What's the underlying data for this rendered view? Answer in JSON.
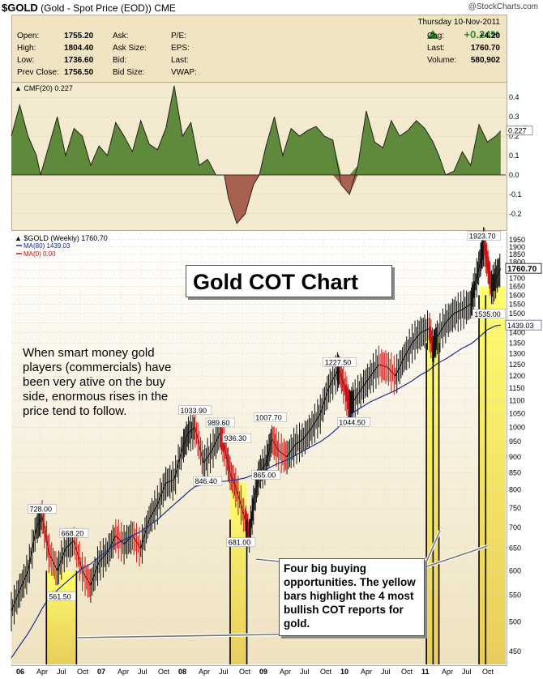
{
  "header": {
    "symbol": "$GOLD",
    "name": "(Gold - Spot Price (EOD))",
    "exchange": "CME",
    "brand": "@StockCharts.com",
    "date": "Thursday  10-Nov-2011",
    "change_pct": "+0.24%",
    "rows": [
      {
        "k1": "Open:",
        "v1": "1755.20",
        "k2": "Ask:",
        "k3": "P/E:",
        "k4": "Chg:",
        "v4": "+4.20"
      },
      {
        "k1": "High:",
        "v1": "1804.40",
        "k2": "Ask Size:",
        "k3": "EPS:",
        "k4": "Last:",
        "v4": "1760.70"
      },
      {
        "k1": "Low:",
        "v1": "1736.60",
        "k2": "Bid:",
        "k3": "Last:",
        "k4": "Volume:",
        "v4": "580,902"
      },
      {
        "k1": "Prev Close:",
        "v1": "1756.50",
        "k2": "Bid Size:",
        "k3": "VWAP:",
        "k4": "",
        "v4": ""
      }
    ],
    "colors": {
      "up": "#2e8b2e",
      "panel": "#f1e4c2"
    }
  },
  "chart_data": [
    {
      "type": "area",
      "title": "CMF(20) 0.227",
      "ylim": [
        -0.28,
        0.48
      ],
      "yticks": [
        "0.4",
        "0.3",
        "0.2",
        "0.1",
        "0.0",
        "-0.1",
        "-0.2"
      ],
      "last_label": "0.227",
      "x": [
        2006.0,
        2006.1,
        2006.2,
        2006.3,
        2006.35,
        2006.45,
        2006.55,
        2006.65,
        2006.75,
        2006.85,
        2006.95,
        2007.05,
        2007.15,
        2007.25,
        2007.35,
        2007.45,
        2007.55,
        2007.65,
        2007.75,
        2007.85,
        2007.95,
        2008.05,
        2008.15,
        2008.25,
        2008.35,
        2008.45,
        2008.55,
        2008.6,
        2008.7,
        2008.8,
        2008.9,
        2008.97,
        2009.05,
        2009.15,
        2009.25,
        2009.35,
        2009.45,
        2009.55,
        2009.65,
        2009.75,
        2009.85,
        2009.95,
        2010.05,
        2010.15,
        2010.25,
        2010.35,
        2010.45,
        2010.55,
        2010.65,
        2010.75,
        2010.85,
        2010.95,
        2011.05,
        2011.12,
        2011.2,
        2011.3,
        2011.4,
        2011.5,
        2011.6,
        2011.7,
        2011.8,
        2011.86
      ],
      "values": [
        0.2,
        0.36,
        0.2,
        0.1,
        0.0,
        0.15,
        0.3,
        0.1,
        0.24,
        0.2,
        0.05,
        0.15,
        0.1,
        0.27,
        0.2,
        0.12,
        0.28,
        0.16,
        0.13,
        0.24,
        0.46,
        0.2,
        0.27,
        0.05,
        0.08,
        0.0,
        0.0,
        -0.12,
        -0.25,
        -0.2,
        -0.05,
        0.0,
        0.15,
        0.3,
        0.1,
        0.24,
        0.2,
        0.23,
        0.25,
        0.2,
        0.18,
        -0.05,
        -0.1,
        0.05,
        0.33,
        0.17,
        0.14,
        0.28,
        0.2,
        0.23,
        0.28,
        0.24,
        0.17,
        0.1,
        0.0,
        0.02,
        0.12,
        0.05,
        0.26,
        0.17,
        0.2,
        0.227
      ]
    },
    {
      "type": "line",
      "title": "$GOLD (Weekly) 1760.70",
      "legend": [
        "MA(80) 1439.03",
        "MA(0) 0.00"
      ],
      "xlabels": [
        "06",
        "Apr",
        "Jul",
        "Oct",
        "07",
        "Apr",
        "Jul",
        "Oct",
        "08",
        "Apr",
        "Jul",
        "Oct",
        "09",
        "Apr",
        "Jul",
        "Oct",
        "10",
        "Apr",
        "Jul",
        "Oct",
        "11",
        "Apr",
        "Jul",
        "Oct"
      ],
      "yticks": [
        "1950",
        "1900",
        "1850",
        "1800",
        "1750",
        "1700",
        "1650",
        "1600",
        "1550",
        "1500",
        "1450",
        "1400",
        "1350",
        "1300",
        "1250",
        "1200",
        "1150",
        "1100",
        "1050",
        "1000",
        "950",
        "900",
        "850",
        "800",
        "750",
        "700",
        "650",
        "600",
        "550",
        "500",
        "450"
      ],
      "ylog": true,
      "ylim": [
        430,
        2000
      ],
      "xlim": [
        2006.0,
        2011.92
      ],
      "x": [
        2006.0,
        2006.1,
        2006.2,
        2006.3,
        2006.37,
        2006.45,
        2006.55,
        2006.65,
        2006.75,
        2006.85,
        2006.95,
        2007.05,
        2007.15,
        2007.25,
        2007.35,
        2007.45,
        2007.55,
        2007.65,
        2007.75,
        2007.85,
        2007.95,
        2008.05,
        2008.12,
        2008.2,
        2008.3,
        2008.4,
        2008.5,
        2008.55,
        2008.62,
        2008.7,
        2008.8,
        2008.85,
        2008.9,
        2008.97,
        2009.05,
        2009.12,
        2009.2,
        2009.3,
        2009.4,
        2009.5,
        2009.6,
        2009.7,
        2009.8,
        2009.9,
        2009.93,
        2010.0,
        2010.05,
        2010.1,
        2010.2,
        2010.3,
        2010.4,
        2010.5,
        2010.6,
        2010.7,
        2010.8,
        2010.9,
        2011.0,
        2011.05,
        2011.1,
        2011.2,
        2011.3,
        2011.4,
        2011.5,
        2011.55,
        2011.62,
        2011.66,
        2011.7,
        2011.75,
        2011.8,
        2011.86
      ],
      "values": [
        520,
        560,
        600,
        700,
        728,
        640,
        600,
        650,
        668,
        600,
        570,
        620,
        640,
        680,
        660,
        680,
        650,
        720,
        760,
        820,
        830,
        930,
        980,
        1000,
        880,
        920,
        980,
        936,
        850,
        800,
        720,
        681,
        760,
        850,
        880,
        960,
        920,
        900,
        940,
        960,
        1000,
        1050,
        1150,
        1220,
        1227,
        1140,
        1080,
        1100,
        1150,
        1200,
        1250,
        1240,
        1200,
        1280,
        1350,
        1400,
        1420,
        1330,
        1380,
        1450,
        1500,
        1520,
        1550,
        1650,
        1820,
        1923,
        1800,
        1650,
        1700,
        1760
      ],
      "ma80": [
        440,
        460,
        480,
        505,
        525,
        545,
        560,
        575,
        590,
        605,
        615,
        630,
        645,
        660,
        670,
        680,
        690,
        705,
        720,
        740,
        760,
        780,
        795,
        810,
        815,
        820,
        825,
        825,
        827,
        830,
        835,
        840,
        845,
        852,
        860,
        870,
        880,
        890,
        905,
        920,
        935,
        950,
        970,
        995,
        1005,
        1025,
        1040,
        1055,
        1075,
        1095,
        1110,
        1125,
        1140,
        1160,
        1180,
        1205,
        1225,
        1240,
        1255,
        1275,
        1300,
        1325,
        1345,
        1360,
        1385,
        1400,
        1415,
        1425,
        1435,
        1439
      ],
      "peak_labels": [
        {
          "x": 2006.37,
          "v": 728,
          "text": "728.00"
        },
        {
          "x": 2006.75,
          "v": 668,
          "text": "668.20"
        },
        {
          "x": 2006.6,
          "v": 561.5,
          "text": "561.50"
        },
        {
          "x": 2008.2,
          "v": 1033.9,
          "text": "1033.90"
        },
        {
          "x": 2008.5,
          "v": 989.6,
          "text": "989.60"
        },
        {
          "x": 2008.35,
          "v": 846.4,
          "text": "846.40"
        },
        {
          "x": 2008.7,
          "v": 936.3,
          "text": "936.30"
        },
        {
          "x": 2008.75,
          "v": 681,
          "text": "681.00"
        },
        {
          "x": 2009.1,
          "v": 1007.7,
          "text": "1007.70"
        },
        {
          "x": 2009.05,
          "v": 865,
          "text": "865.00"
        },
        {
          "x": 2009.93,
          "v": 1227.5,
          "text": "1227.50"
        },
        {
          "x": 2010.1,
          "v": 1044.5,
          "text": "1044.50"
        },
        {
          "x": 2011.66,
          "v": 1923.7,
          "text": "1923.70"
        },
        {
          "x": 2011.72,
          "v": 1535,
          "text": "1535.00"
        }
      ],
      "last_price": "1760.70",
      "last_ma": "1439.03",
      "highlight_bands": [
        [
          2006.42,
          2006.78
        ],
        [
          2008.62,
          2008.82
        ],
        [
          2010.97,
          2011.12
        ],
        [
          2011.6,
          2011.92
        ]
      ],
      "vertical_lines": [
        2006.42,
        2006.78,
        2008.62,
        2008.82,
        2010.97,
        2011.05,
        2011.12,
        2011.6,
        2011.68
      ]
    }
  ],
  "annotations": {
    "chart_title": "Gold COT Chart",
    "left_note": "When smart money gold players (commercials) have been very ative on the buy side, enormous rises in the price tend to follow.",
    "box_note": "Four big buying opportunities.  The yellow bars highlight the 4 most bullish COT reports for gold."
  }
}
